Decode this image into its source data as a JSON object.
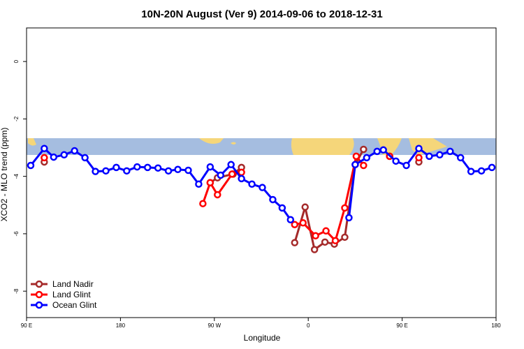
{
  "chart_data": {
    "type": "line",
    "title": "10N-20N August (Ver 9)   2014-09-06 to 2018-12-31",
    "x_label": "Longitude",
    "y_label": "XCO2 - MLO trend (ppm)",
    "xlim": [
      90,
      540
    ],
    "xticks": [
      {
        "value": 90,
        "label": "90 E"
      },
      180,
      {
        "value": 270,
        "label": "90 W"
      },
      {
        "value": 360,
        "label": "0"
      },
      {
        "value": 450,
        "label": "90 E"
      },
      {
        "value": 540,
        "label": "180"
      }
    ],
    "ylim": [
      -8.92,
      1.17
    ],
    "yticks": [
      0,
      -2,
      -4,
      -6,
      -8
    ],
    "legend": "bottom-left",
    "series": [
      {
        "name": "Land Nadir",
        "color": "#a52a2a",
        "x": [
          107,
          null,
          266,
          273,
          288,
          296,
          null,
          347,
          357,
          366,
          376,
          385,
          395,
          405,
          413,
          null,
          438,
          null,
          466
        ],
        "values": [
          -3.5,
          null,
          -4.22,
          -4.05,
          -3.92,
          -3.69,
          null,
          -6.31,
          -5.07,
          -6.55,
          -6.29,
          -6.36,
          -6.12,
          -3.59,
          -3.06,
          null,
          -3.3,
          null,
          -3.5
        ]
      },
      {
        "name": "Land Glint",
        "color": "#ff0000",
        "x": [
          107,
          null,
          259,
          266,
          273,
          287,
          296,
          null,
          347,
          355,
          367,
          377,
          386,
          395,
          406,
          413,
          null,
          438,
          null,
          466
        ],
        "values": [
          -3.35,
          null,
          -4.95,
          -4.22,
          -4.64,
          -3.92,
          -3.86,
          null,
          -5.68,
          -5.62,
          -6.07,
          -5.9,
          -6.24,
          -5.1,
          -3.3,
          -3.62,
          null,
          -3.3,
          null,
          -3.35
        ]
      },
      {
        "name": "Ocean Glint",
        "color": "#0000ff",
        "x": [
          94,
          107,
          116,
          126,
          136,
          146,
          156,
          166,
          176,
          186,
          196,
          206,
          216,
          226,
          235,
          245,
          255,
          266,
          276,
          286,
          296,
          306,
          316,
          326,
          335,
          343,
          null,
          399,
          405,
          416,
          426,
          432,
          444,
          454,
          466,
          476,
          486,
          496,
          506,
          516,
          526,
          536
        ],
        "values": [
          -3.62,
          -3.03,
          -3.33,
          -3.25,
          -3.11,
          -3.35,
          -3.83,
          -3.81,
          -3.69,
          -3.81,
          -3.67,
          -3.69,
          -3.71,
          -3.81,
          -3.76,
          -3.79,
          -4.27,
          -3.67,
          -3.96,
          -3.59,
          -4.08,
          -4.27,
          -4.39,
          -4.81,
          -5.1,
          -5.51,
          null,
          -5.44,
          -3.59,
          -3.35,
          -3.13,
          -3.08,
          -3.47,
          -3.62,
          -3.03,
          -3.3,
          -3.25,
          -3.13,
          -3.35,
          -3.83,
          -3.81,
          -3.69
        ]
      }
    ]
  }
}
